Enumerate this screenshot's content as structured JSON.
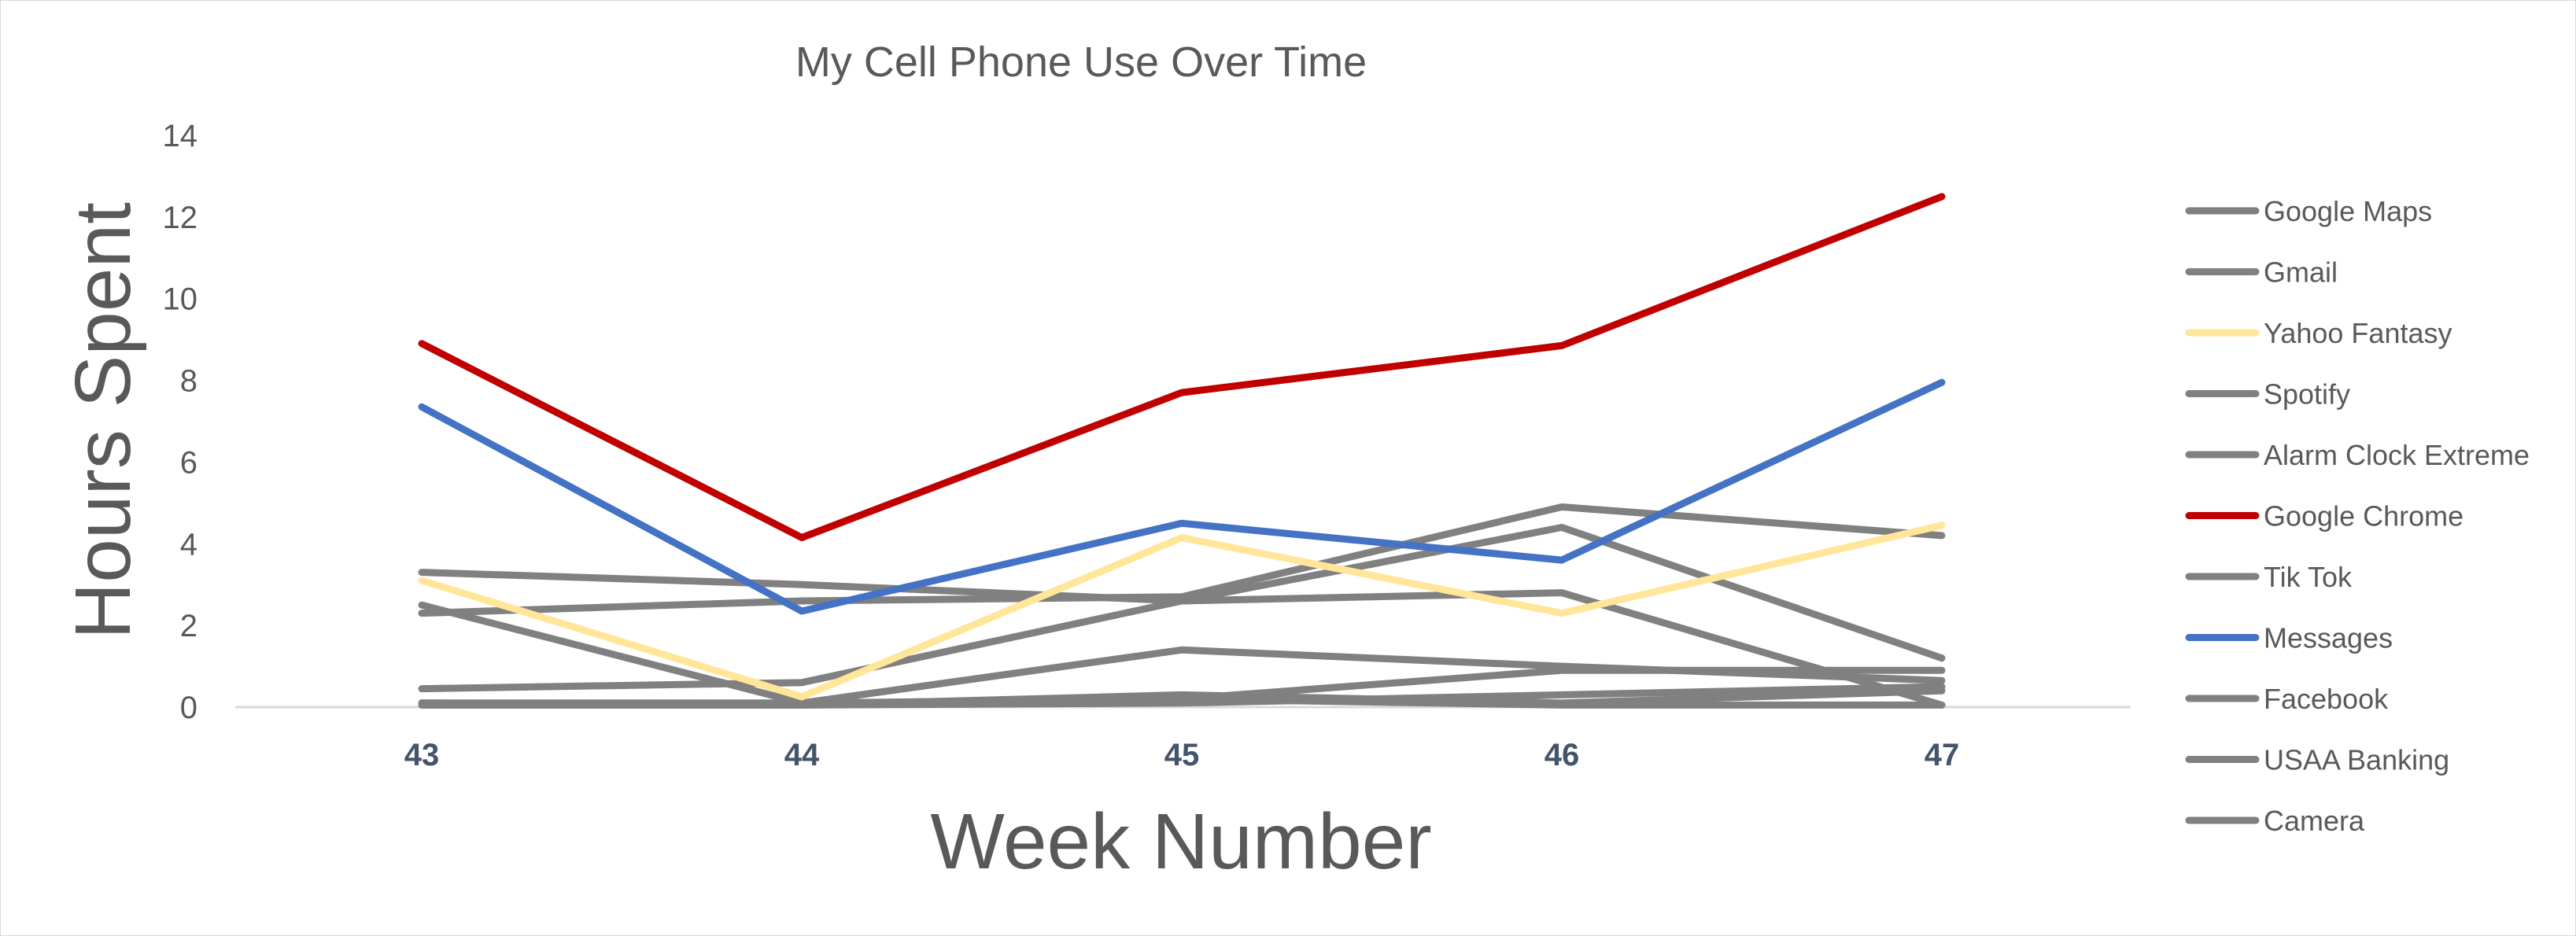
{
  "chart_data": {
    "type": "line",
    "title": "My Cell Phone Use Over Time",
    "xlabel": "Week Number",
    "ylabel": "Hours Spent",
    "categories": [
      "43",
      "44",
      "45",
      "46",
      "47"
    ],
    "ylim": [
      0,
      14
    ],
    "yticks": [
      0,
      2,
      4,
      6,
      8,
      10,
      12,
      14
    ],
    "grid": false,
    "legend_position": "right",
    "colors": {
      "default_series": "#808080",
      "yahoo": "#ffe699",
      "chrome": "#c00000",
      "messages": "#4472c4",
      "xtick": "#44546a"
    },
    "series": [
      {
        "name": "Google Maps",
        "color": "#808080",
        "values": [
          3.3,
          3.0,
          2.6,
          2.8,
          0.05
        ]
      },
      {
        "name": "Gmail",
        "color": "#808080",
        "values": [
          0.45,
          0.6,
          2.6,
          4.4,
          1.2
        ]
      },
      {
        "name": "Yahoo Fantasy",
        "color": "#ffe699",
        "values": [
          3.1,
          0.25,
          4.15,
          2.3,
          4.45
        ]
      },
      {
        "name": "Spotify",
        "color": "#808080",
        "values": [
          2.3,
          2.6,
          2.7,
          4.9,
          4.2
        ]
      },
      {
        "name": "Alarm Clock Extreme",
        "color": "#808080",
        "values": [
          2.5,
          0.1,
          1.4,
          1.0,
          0.65
        ]
      },
      {
        "name": "Google Chrome",
        "color": "#c00000",
        "values": [
          8.9,
          4.15,
          7.7,
          8.85,
          12.5
        ]
      },
      {
        "name": "Tik Tok",
        "color": "#808080",
        "values": [
          0.1,
          0.05,
          0.3,
          0.1,
          0.4
        ]
      },
      {
        "name": "Messages",
        "color": "#4472c4",
        "values": [
          7.35,
          2.35,
          4.5,
          3.6,
          7.95
        ]
      },
      {
        "name": "Facebook",
        "color": "#808080",
        "values": [
          0.1,
          0.1,
          0.2,
          0.9,
          0.9
        ]
      },
      {
        "name": "USAA Banking",
        "color": "#808080",
        "values": [
          0.05,
          0.05,
          0.1,
          0.3,
          0.5
        ]
      },
      {
        "name": "Camera",
        "color": "#808080",
        "values": [
          0.05,
          0.05,
          0.2,
          0.05,
          0.05
        ]
      }
    ]
  }
}
